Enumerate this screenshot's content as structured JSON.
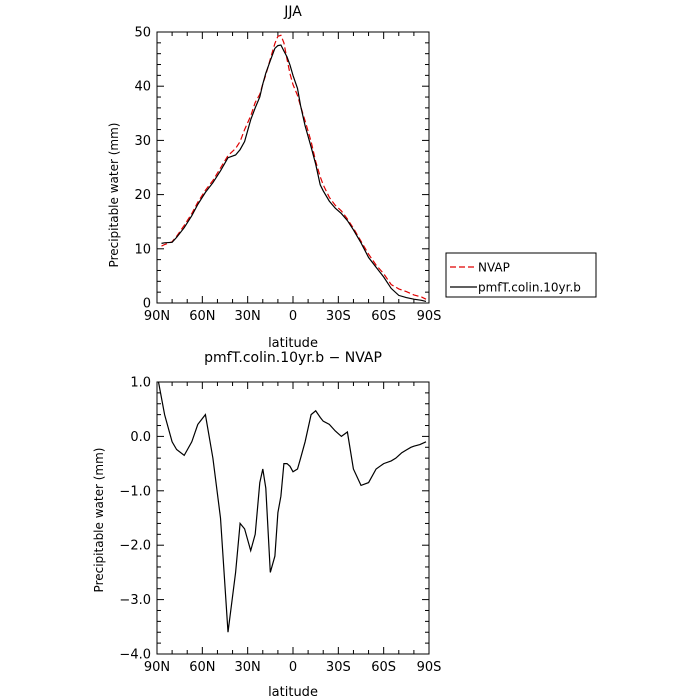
{
  "chart_data": [
    {
      "type": "line",
      "title": "JJA",
      "xlabel": "latitude",
      "ylabel": "Precipitable water (mm)",
      "xlim": [
        90,
        -90
      ],
      "ylim": [
        0,
        50
      ],
      "x_ticks": [
        90,
        60,
        30,
        0,
        -30,
        -60,
        -90
      ],
      "x_tick_labels": [
        "90N",
        "60N",
        "30N",
        "0",
        "30S",
        "60S",
        "90S"
      ],
      "y_ticks": [
        0,
        10,
        20,
        30,
        40,
        50
      ],
      "y_tick_labels": [
        "0",
        "10",
        "20",
        "30",
        "40",
        "50"
      ],
      "legend": "outside-right",
      "series": [
        {
          "name": "NVAP",
          "color": "#e00000",
          "style": "dashed",
          "x": [
            87,
            85,
            80,
            77,
            72,
            67,
            63,
            58,
            53,
            48,
            43,
            38,
            35,
            32,
            28,
            25,
            22,
            20,
            18,
            15,
            12,
            10,
            8,
            6,
            4,
            2,
            0,
            -3,
            -5,
            -8,
            -12,
            -15,
            -18,
            -20,
            -24,
            -28,
            -32,
            -36,
            -40,
            -45,
            -50,
            -55,
            -60,
            -65,
            -70,
            -75,
            -80,
            -85,
            -88
          ],
          "y": [
            10.5,
            10.8,
            11.3,
            12.3,
            14.3,
            16.5,
            18.6,
            20.8,
            22.6,
            24.9,
            27.2,
            28.5,
            29.8,
            32,
            34.5,
            37,
            38.5,
            40.4,
            42.1,
            45,
            47.9,
            49.2,
            49.4,
            48,
            45,
            42.3,
            40.3,
            38.3,
            36.3,
            33.6,
            29.8,
            26.1,
            23.3,
            21.8,
            19.5,
            18,
            17,
            15.5,
            13.8,
            11.4,
            9,
            7,
            5.4,
            3.4,
            2.6,
            2.1,
            1.5,
            1.1,
            0.7
          ]
        },
        {
          "name": "pmfT.colin.10yr.b",
          "color": "#000000",
          "style": "solid",
          "x": [
            87,
            85,
            80,
            77,
            72,
            67,
            63,
            58,
            53,
            48,
            43,
            38,
            35,
            32,
            28,
            25,
            22,
            20,
            18,
            15,
            12,
            10,
            8,
            6,
            4,
            2,
            0,
            -3,
            -5,
            -8,
            -12,
            -15,
            -18,
            -20,
            -24,
            -28,
            -32,
            -36,
            -40,
            -45,
            -50,
            -55,
            -60,
            -65,
            -70,
            -75,
            -80,
            -85,
            -88
          ],
          "y": [
            11,
            11.1,
            11.2,
            12.1,
            13.9,
            16.1,
            18.2,
            20.4,
            22.2,
            24.4,
            26.8,
            27.3,
            28.3,
            29.8,
            33.8,
            36,
            38,
            40.4,
            42.4,
            44.7,
            47,
            47.5,
            47.6,
            46.5,
            45.4,
            43.9,
            42,
            39.6,
            36.4,
            32.7,
            28.8,
            25.6,
            21.8,
            20.7,
            18.8,
            17.5,
            16.5,
            15.2,
            13.5,
            11.1,
            8.4,
            6.6,
            4.8,
            2.7,
            1.4,
            1,
            0.7,
            0.5,
            0.3
          ]
        }
      ]
    },
    {
      "type": "line",
      "title": "pmfT.colin.10yr.b − NVAP",
      "xlabel": "latitude",
      "ylabel": "Precipitable water (mm)",
      "xlim": [
        90,
        -90
      ],
      "ylim": [
        -4,
        1
      ],
      "x_ticks": [
        90,
        60,
        30,
        0,
        -30,
        -60,
        -90
      ],
      "x_tick_labels": [
        "90N",
        "60N",
        "30N",
        "0",
        "30S",
        "60S",
        "90S"
      ],
      "y_ticks": [
        1,
        0,
        -1,
        -2,
        -3,
        -4
      ],
      "y_tick_labels": [
        "1.0",
        "0.0",
        "−1.0",
        "−2.0",
        "−3.0",
        "−4.0"
      ],
      "series": [
        {
          "color": "#000000",
          "style": "solid",
          "x": [
            89,
            85,
            80,
            77,
            72,
            67,
            63,
            58,
            53,
            48,
            43,
            38,
            35,
            32,
            28,
            25,
            22,
            20,
            18,
            15,
            12,
            10,
            8,
            6,
            4,
            2,
            0,
            -3,
            -5,
            -8,
            -12,
            -15,
            -18,
            -20,
            -24,
            -28,
            -32,
            -36,
            -40,
            -45,
            -50,
            -55,
            -60,
            -65,
            -68,
            -70,
            -72,
            -75,
            -78,
            -80,
            -84,
            -88
          ],
          "y": [
            1,
            0.4,
            -0.1,
            -0.24,
            -0.35,
            -0.1,
            0.22,
            0.4,
            -0.4,
            -1.5,
            -3.6,
            -2.5,
            -1.6,
            -1.7,
            -2.1,
            -1.8,
            -0.85,
            -0.6,
            -0.95,
            -2.5,
            -2.2,
            -1.4,
            -1.1,
            -0.5,
            -0.5,
            -0.55,
            -0.65,
            -0.6,
            -0.4,
            -0.1,
            0.4,
            0.47,
            0.35,
            0.28,
            0.22,
            0.1,
            0.0,
            0.08,
            -0.6,
            -0.9,
            -0.85,
            -0.6,
            -0.5,
            -0.45,
            -0.4,
            -0.35,
            -0.3,
            -0.25,
            -0.2,
            -0.18,
            -0.15,
            -0.1
          ]
        }
      ]
    }
  ]
}
